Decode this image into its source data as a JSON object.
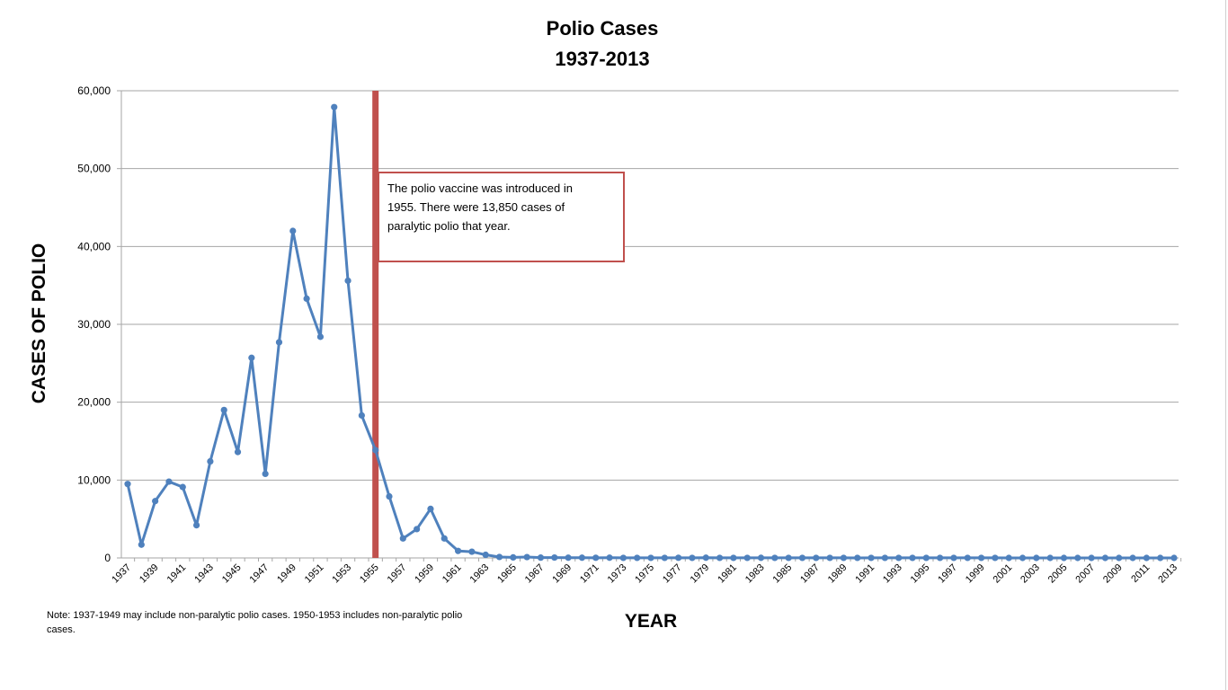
{
  "chart_data": {
    "type": "line",
    "title": "Polio Cases",
    "subtitle": "1937-2013",
    "xlabel": "YEAR",
    "ylabel": "CASES OF POLIO",
    "ylim": [
      0,
      60000
    ],
    "yticks": [
      0,
      10000,
      20000,
      30000,
      40000,
      50000,
      60000
    ],
    "ytick_labels": [
      "0",
      "10,000",
      "20,000",
      "30,000",
      "40,000",
      "50,000",
      "60,000"
    ],
    "xtick_labels": [
      "1937",
      "1939",
      "1941",
      "1943",
      "1945",
      "1947",
      "1949",
      "1951",
      "1953",
      "1955",
      "1957",
      "1959",
      "1961",
      "1963",
      "1965",
      "1967",
      "1969",
      "1971",
      "1973",
      "1975",
      "1977",
      "1979",
      "1981",
      "1983",
      "1985",
      "1987",
      "1989",
      "1991",
      "1993",
      "1995",
      "1997",
      "1999",
      "2001",
      "2003",
      "2005",
      "2007",
      "2009",
      "2011",
      "2013"
    ],
    "grid": true,
    "series": [
      {
        "color": "#4F81BD",
        "x": [
          1937,
          1938,
          1939,
          1940,
          1941,
          1942,
          1943,
          1944,
          1945,
          1946,
          1947,
          1948,
          1949,
          1950,
          1951,
          1952,
          1953,
          1954,
          1955,
          1956,
          1957,
          1958,
          1959,
          1960,
          1961,
          1962,
          1963,
          1964,
          1965,
          1966,
          1967,
          1968,
          1969,
          1970,
          1971,
          1972,
          1973,
          1974,
          1975,
          1976,
          1977,
          1978,
          1979,
          1980,
          1981,
          1982,
          1983,
          1984,
          1985,
          1986,
          1987,
          1988,
          1989,
          1990,
          1991,
          1992,
          1993,
          1994,
          1995,
          1996,
          1997,
          1998,
          1999,
          2000,
          2001,
          2002,
          2003,
          2004,
          2005,
          2006,
          2007,
          2008,
          2009,
          2010,
          2011,
          2012,
          2013
        ],
        "values": [
          9500,
          1700,
          7300,
          9800,
          9100,
          4200,
          12400,
          19000,
          13600,
          25700,
          10800,
          27700,
          42000,
          33300,
          28400,
          57900,
          35600,
          18300,
          13850,
          7900,
          2500,
          3700,
          6300,
          2500,
          900,
          800,
          400,
          120,
          70,
          110,
          40,
          50,
          30,
          30,
          20,
          30,
          10,
          10,
          10,
          10,
          20,
          10,
          30,
          10,
          10,
          10,
          15,
          10,
          10,
          10,
          10,
          10,
          10,
          6,
          10,
          10,
          10,
          10,
          10,
          10,
          10,
          10,
          10,
          10,
          0,
          0,
          0,
          0,
          1,
          0,
          0,
          0,
          0,
          0,
          0,
          0,
          0
        ]
      }
    ],
    "marker_line": {
      "x": 1955,
      "color": "#C0504D"
    },
    "annotation": {
      "text": "The polio vaccine was introduced in 1955. There were 13,850 cases of paralytic polio that year.",
      "border_color": "#C0504D"
    },
    "note": "Note: 1937-1949 may include non-paralytic polio cases. 1950-1953 includes non-paralytic polio cases."
  }
}
